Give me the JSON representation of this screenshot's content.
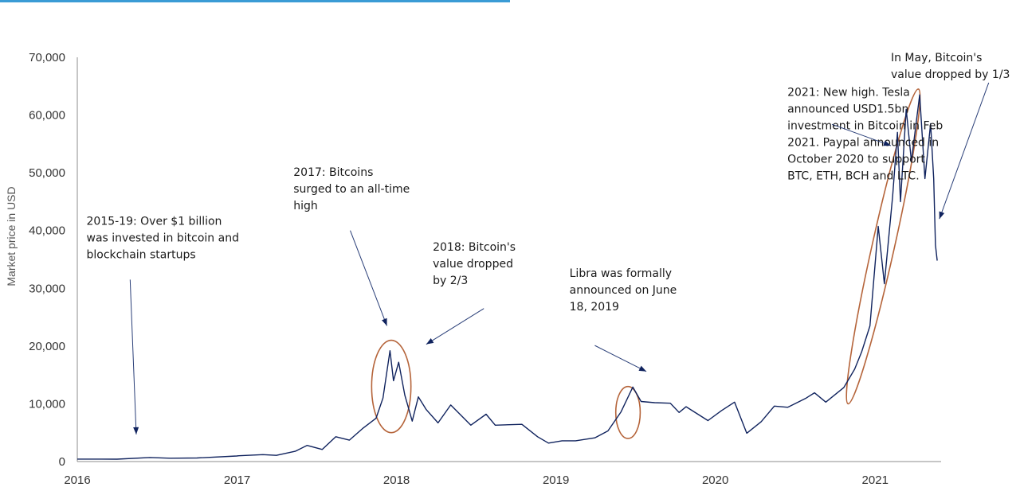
{
  "colors": {
    "line": "#10235e",
    "highlight": "#b5643a",
    "arrow": "#2a3f78",
    "axis": "#8c8c8c",
    "title_accent": "#3a9bd5"
  },
  "chart_data": {
    "type": "line",
    "title": "",
    "xlabel": "",
    "ylabel": "Market price in USD",
    "ylim": [
      0,
      70000
    ],
    "xlim": [
      "2016-01-01",
      "2021-06-01"
    ],
    "grid": false,
    "y_ticks": [
      "0",
      "10,000",
      "20,000",
      "30,000",
      "40,000",
      "50,000",
      "60,000",
      "70,000"
    ],
    "x_ticks": [
      "2016",
      "2017",
      "2018",
      "2019",
      "2020",
      "2021"
    ],
    "series": [
      {
        "values": [
          [
            "2016-01-01",
            430
          ],
          [
            "2016-04-01",
            420
          ],
          [
            "2016-06-15",
            700
          ],
          [
            "2016-08-01",
            580
          ],
          [
            "2016-10-01",
            620
          ],
          [
            "2016-12-31",
            960
          ],
          [
            "2017-01-05",
            1000
          ],
          [
            "2017-03-01",
            1200
          ],
          [
            "2017-04-01",
            1080
          ],
          [
            "2017-05-15",
            1800
          ],
          [
            "2017-06-10",
            2800
          ],
          [
            "2017-07-15",
            2100
          ],
          [
            "2017-08-15",
            4300
          ],
          [
            "2017-09-15",
            3700
          ],
          [
            "2017-10-15",
            5700
          ],
          [
            "2017-11-15",
            7500
          ],
          [
            "2017-12-01",
            11000
          ],
          [
            "2017-12-17",
            19200
          ],
          [
            "2017-12-25",
            14000
          ],
          [
            "2018-01-06",
            17200
          ],
          [
            "2018-01-20",
            11500
          ],
          [
            "2018-02-06",
            7000
          ],
          [
            "2018-02-20",
            11200
          ],
          [
            "2018-03-10",
            9000
          ],
          [
            "2018-04-06",
            6700
          ],
          [
            "2018-05-05",
            9800
          ],
          [
            "2018-06-20",
            6300
          ],
          [
            "2018-07-25",
            8200
          ],
          [
            "2018-08-15",
            6300
          ],
          [
            "2018-10-15",
            6450
          ],
          [
            "2018-11-20",
            4300
          ],
          [
            "2018-12-15",
            3200
          ],
          [
            "2019-01-15",
            3600
          ],
          [
            "2019-02-15",
            3600
          ],
          [
            "2019-03-31",
            4100
          ],
          [
            "2019-04-30",
            5300
          ],
          [
            "2019-05-30",
            8600
          ],
          [
            "2019-06-26",
            12900
          ],
          [
            "2019-07-15",
            10400
          ],
          [
            "2019-08-15",
            10200
          ],
          [
            "2019-09-20",
            10100
          ],
          [
            "2019-10-10",
            8500
          ],
          [
            "2019-10-26",
            9500
          ],
          [
            "2019-12-15",
            7100
          ],
          [
            "2020-01-15",
            8800
          ],
          [
            "2020-02-14",
            10300
          ],
          [
            "2020-03-13",
            4900
          ],
          [
            "2020-04-15",
            6900
          ],
          [
            "2020-05-15",
            9600
          ],
          [
            "2020-06-15",
            9400
          ],
          [
            "2020-07-27",
            11000
          ],
          [
            "2020-08-15",
            11900
          ],
          [
            "2020-09-10",
            10300
          ],
          [
            "2020-10-21",
            12800
          ],
          [
            "2020-11-15",
            16000
          ],
          [
            "2020-12-01",
            19000
          ],
          [
            "2020-12-20",
            23500
          ],
          [
            "2021-01-08",
            40700
          ],
          [
            "2021-01-22",
            30800
          ],
          [
            "2021-02-10",
            46000
          ],
          [
            "2021-02-21",
            57000
          ],
          [
            "2021-02-28",
            45000
          ],
          [
            "2021-03-13",
            61000
          ],
          [
            "2021-03-25",
            52000
          ],
          [
            "2021-04-13",
            63500
          ],
          [
            "2021-04-25",
            49000
          ],
          [
            "2021-05-08",
            58500
          ],
          [
            "2021-05-15",
            49000
          ],
          [
            "2021-05-19",
            37500
          ],
          [
            "2021-05-23",
            34800
          ]
        ]
      }
    ],
    "highlights": [
      {
        "center": [
          "2017-12-20",
          13000
        ],
        "rx_days": 45,
        "ry": 8000
      },
      {
        "center": [
          "2019-06-15",
          8500
        ],
        "rx_days": 28,
        "ry": 4500
      }
    ],
    "annotations": [
      {
        "lines": [
          "2015-19: Over $1 billion",
          "was invested in bitcoin and",
          "blockchain startups"
        ],
        "text_at": [
          "2016-01-22",
          41000
        ],
        "arrow_from": [
          "2016-05-01",
          31500
        ],
        "arrow_to": [
          "2016-05-15",
          4700
        ]
      },
      {
        "lines": [
          "2017: Bitcoins",
          "surged to an all-time",
          "high"
        ],
        "text_at": [
          "2017-05-10",
          49500
        ],
        "arrow_from": [
          "2017-09-17",
          40000
        ],
        "arrow_to": [
          "2017-12-10",
          23500
        ]
      },
      {
        "lines": [
          "2018: Bitcoin's",
          "value dropped",
          "by 2/3"
        ],
        "text_at": [
          "2018-03-25",
          36500
        ],
        "arrow_from": [
          "2018-07-20",
          26500
        ],
        "arrow_to": [
          "2018-03-10",
          20300
        ]
      },
      {
        "lines": [
          "Libra was formally",
          "announced on June",
          "18, 2019"
        ],
        "text_at": [
          "2019-02-01",
          32000
        ],
        "arrow_from": [
          "2019-03-31",
          20100
        ],
        "arrow_to": [
          "2019-07-27",
          15600
        ]
      },
      {
        "lines": [
          "2021: New high. Tesla",
          "announced USD1.5bn",
          "investment in Bitcoin in Feb",
          "2021. Paypal announced in",
          "October 2020 to support",
          "BTC, ETH, BCH and LTC."
        ],
        "text_at": [
          "2020-06-14",
          63300
        ],
        "arrow_from": [
          "2020-09-24",
          58400
        ],
        "arrow_to": [
          "2021-02-06",
          54700
        ]
      },
      {
        "lines": [
          "In May, Bitcoin's",
          "value dropped by 1/3"
        ],
        "text_at": [
          "2021-02-06",
          69300
        ],
        "arrow_from": [
          "2021-09-18",
          65600
        ],
        "arrow_to": [
          "2021-05-28",
          42000
        ]
      }
    ],
    "trend_highlight": {
      "from": [
        "2020-10-31",
        10000
      ],
      "to": [
        "2021-04-10",
        64500
      ],
      "half_width": 14
    }
  }
}
